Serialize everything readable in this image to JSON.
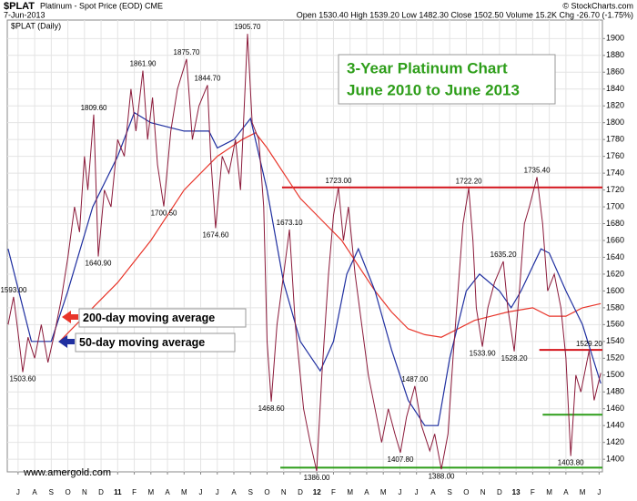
{
  "chart_data": {
    "type": "line",
    "symbol": "$PLAT",
    "name": "Platinum - Spot Price (EOD) CME",
    "date": "7-Jun-2013",
    "source": "© StockCharts.com",
    "quote": "Open 1530.40 High 1539.20 Low 1482.30 Close 1502.50 Volume 15.2K Chg -26.70 (-1.75%)",
    "panel_label": "$PLAT (Daily)",
    "title": "3-Year Platinum Chart",
    "subtitle": "June 2010 to June 2013",
    "watermark": "www.amergold.com",
    "xlim": [
      -0.65,
      35.2
    ],
    "ylim": [
      1385,
      1922
    ],
    "grid": true,
    "xticks": [
      {
        "value": 0,
        "label": "J"
      },
      {
        "value": 1,
        "label": "A"
      },
      {
        "value": 2,
        "label": "S"
      },
      {
        "value": 3,
        "label": "O"
      },
      {
        "value": 4,
        "label": "N"
      },
      {
        "value": 5,
        "label": "D"
      },
      {
        "value": 6,
        "label": "11"
      },
      {
        "value": 7,
        "label": "F"
      },
      {
        "value": 8,
        "label": "M"
      },
      {
        "value": 9,
        "label": "A"
      },
      {
        "value": 10,
        "label": "M"
      },
      {
        "value": 11,
        "label": "J"
      },
      {
        "value": 12,
        "label": "J"
      },
      {
        "value": 13,
        "label": "A"
      },
      {
        "value": 14,
        "label": "S"
      },
      {
        "value": 15,
        "label": "O"
      },
      {
        "value": 16,
        "label": "N"
      },
      {
        "value": 17,
        "label": "D"
      },
      {
        "value": 18,
        "label": "12"
      },
      {
        "value": 19,
        "label": "F"
      },
      {
        "value": 20,
        "label": "M"
      },
      {
        "value": 21,
        "label": "A"
      },
      {
        "value": 22,
        "label": "M"
      },
      {
        "value": 23,
        "label": "J"
      },
      {
        "value": 24,
        "label": "J"
      },
      {
        "value": 25,
        "label": "A"
      },
      {
        "value": 26,
        "label": "S"
      },
      {
        "value": 27,
        "label": "O"
      },
      {
        "value": 28,
        "label": "N"
      },
      {
        "value": 29,
        "label": "D"
      },
      {
        "value": 30,
        "label": "13"
      },
      {
        "value": 31,
        "label": "F"
      },
      {
        "value": 32,
        "label": "M"
      },
      {
        "value": 33,
        "label": "A"
      },
      {
        "value": 34,
        "label": "M"
      },
      {
        "value": 35,
        "label": "J"
      }
    ],
    "yticks": [
      1400,
      1420,
      1440,
      1460,
      1480,
      1500,
      1520,
      1540,
      1560,
      1580,
      1600,
      1620,
      1640,
      1660,
      1680,
      1700,
      1720,
      1740,
      1760,
      1780,
      1800,
      1820,
      1840,
      1860,
      1880,
      1900
    ],
    "price": {
      "color": "#8b1a3a",
      "x": [
        -0.6,
        -0.27,
        0,
        0.28,
        0.6,
        1,
        1.4,
        1.8,
        2.2,
        2.6,
        3,
        3.4,
        3.7,
        4,
        4.2,
        4.56,
        4.83,
        5.2,
        5.6,
        6,
        6.4,
        6.8,
        7.1,
        7.52,
        7.8,
        8.1,
        8.4,
        8.78,
        9.2,
        9.6,
        10.15,
        10.5,
        10.9,
        11.41,
        11.6,
        11.9,
        12.3,
        12.7,
        13.1,
        13.4,
        13.82,
        14.1,
        14.5,
        14.8,
        15.0,
        15.25,
        15.6,
        16.0,
        16.35,
        16.7,
        17.2,
        17.6,
        17.99,
        18.3,
        18.7,
        19.0,
        19.3,
        19.6,
        19.9,
        20.3,
        20.7,
        21.1,
        21.5,
        21.9,
        22.3,
        22.7,
        23.03,
        23.4,
        23.9,
        24.3,
        24.8,
        25.1,
        25.5,
        25.9,
        26.2,
        26.5,
        26.8,
        27.15,
        27.4,
        27.6,
        27.97,
        28.3,
        28.7,
        29.23,
        29.5,
        29.89,
        30.2,
        30.5,
        30.8,
        31.26,
        31.6,
        31.9,
        32.3,
        32.7,
        33.0,
        33.29,
        33.6,
        33.9,
        34.4,
        34.7,
        35.1
      ],
      "values": [
        1560,
        1593,
        1550,
        1503.6,
        1545,
        1520,
        1560,
        1515,
        1550,
        1590,
        1640,
        1700,
        1670,
        1760,
        1720,
        1809.6,
        1640.9,
        1720,
        1700,
        1780,
        1760,
        1840,
        1790,
        1861.9,
        1780,
        1830,
        1750,
        1700.5,
        1790,
        1840,
        1875.7,
        1780,
        1820,
        1844.7,
        1760,
        1674.6,
        1760,
        1740,
        1780,
        1720,
        1905.7,
        1800,
        1780,
        1700,
        1540,
        1468.6,
        1560,
        1620,
        1673.1,
        1560,
        1460,
        1420,
        1386,
        1500,
        1620,
        1690,
        1723,
        1660,
        1700,
        1620,
        1560,
        1500,
        1460,
        1420,
        1460,
        1430,
        1407.8,
        1450,
        1487,
        1440,
        1410,
        1430,
        1388,
        1430,
        1520,
        1600,
        1680,
        1722.2,
        1660,
        1580,
        1533.9,
        1580,
        1610,
        1635.2,
        1580,
        1528.2,
        1600,
        1680,
        1700,
        1735.4,
        1680,
        1600,
        1620,
        1580,
        1520,
        1403.8,
        1500,
        1480,
        1529.2,
        1470,
        1502.5
      ]
    },
    "series": [
      {
        "name": "200-day moving average",
        "color": "#e8352a",
        "x": [
          2.5,
          4,
          6,
          8,
          10,
          12,
          13.5,
          14.3,
          15,
          16,
          17,
          18.5,
          19.5,
          20.5,
          21.5,
          22.5,
          23.5,
          24.5,
          25.5,
          26.5,
          27.5,
          28.5,
          29.5,
          31,
          32,
          33,
          34,
          35.1
        ],
        "values": [
          1540,
          1570,
          1610,
          1660,
          1720,
          1760,
          1780,
          1788,
          1770,
          1740,
          1710,
          1680,
          1660,
          1630,
          1600,
          1575,
          1555,
          1548,
          1545,
          1555,
          1565,
          1570,
          1575,
          1580,
          1570,
          1570,
          1580,
          1585
        ]
      },
      {
        "name": "50-day moving average",
        "color": "#1f2fa0",
        "x": [
          -0.6,
          0.8,
          2,
          3,
          4.5,
          6,
          7,
          8,
          10,
          11.5,
          12,
          13,
          14,
          15,
          16,
          17,
          18.2,
          19,
          19.8,
          20.5,
          21.5,
          22.5,
          23.5,
          24.5,
          25.3,
          26,
          27,
          27.8,
          29,
          29.7,
          30.3,
          31.5,
          32,
          33,
          34,
          35.1
        ],
        "values": [
          1650,
          1540,
          1540,
          1600,
          1700,
          1760,
          1812,
          1800,
          1790,
          1790,
          1770,
          1780,
          1805,
          1720,
          1610,
          1540,
          1505,
          1540,
          1620,
          1650,
          1600,
          1530,
          1470,
          1440,
          1440,
          1520,
          1600,
          1620,
          1600,
          1580,
          1600,
          1650,
          1645,
          1600,
          1560,
          1490
        ]
      }
    ],
    "annotations": [
      {
        "x": -0.27,
        "value": 1593,
        "label": "1593.00"
      },
      {
        "x": 0.28,
        "value": 1503.6,
        "label": "1503.60"
      },
      {
        "x": 4.56,
        "value": 1809.6,
        "label": "1809.60"
      },
      {
        "x": 4.83,
        "value": 1640.9,
        "label": "1640.90"
      },
      {
        "x": 7.52,
        "value": 1861.9,
        "label": "1861.90"
      },
      {
        "x": 8.78,
        "value": 1700.5,
        "label": "1700.50"
      },
      {
        "x": 10.15,
        "value": 1875.7,
        "label": "1875.70"
      },
      {
        "x": 11.41,
        "value": 1844.7,
        "label": "1844.70"
      },
      {
        "x": 11.9,
        "value": 1674.6,
        "label": "1674.60"
      },
      {
        "x": 13.82,
        "value": 1905.7,
        "label": "1905.70"
      },
      {
        "x": 15.25,
        "value": 1468.6,
        "label": "1468.60"
      },
      {
        "x": 16.35,
        "value": 1673.1,
        "label": "1673.10"
      },
      {
        "x": 17.99,
        "value": 1386,
        "label": "1386.00"
      },
      {
        "x": 19.3,
        "value": 1723,
        "label": "1723.00"
      },
      {
        "x": 23.03,
        "value": 1407.8,
        "label": "1407.80"
      },
      {
        "x": 23.9,
        "value": 1487,
        "label": "1487.00"
      },
      {
        "x": 25.5,
        "value": 1388,
        "label": "1388.00"
      },
      {
        "x": 27.15,
        "value": 1722.2,
        "label": "1722.20"
      },
      {
        "x": 27.97,
        "value": 1533.9,
        "label": "1533.90"
      },
      {
        "x": 29.23,
        "value": 1635.2,
        "label": "1635.20"
      },
      {
        "x": 29.89,
        "value": 1528.2,
        "label": "1528.20"
      },
      {
        "x": 31.26,
        "value": 1735.4,
        "label": "1735.40"
      },
      {
        "x": 33.29,
        "value": 1403.8,
        "label": "1403.80"
      },
      {
        "x": 34.4,
        "value": 1529.2,
        "label": "1529.20"
      }
    ],
    "levels": [
      {
        "value": 1723,
        "color": "#d4141c",
        "x": [
          15.9,
          35.2
        ]
      },
      {
        "value": 1530,
        "color": "#d4141c",
        "x": [
          31.4,
          35.2
        ]
      },
      {
        "value": 1453,
        "color": "#2e9e1a",
        "x": [
          31.6,
          35.2
        ]
      },
      {
        "value": 1390,
        "color": "#2e9e1a",
        "x": [
          15.8,
          35.2
        ]
      }
    ]
  }
}
